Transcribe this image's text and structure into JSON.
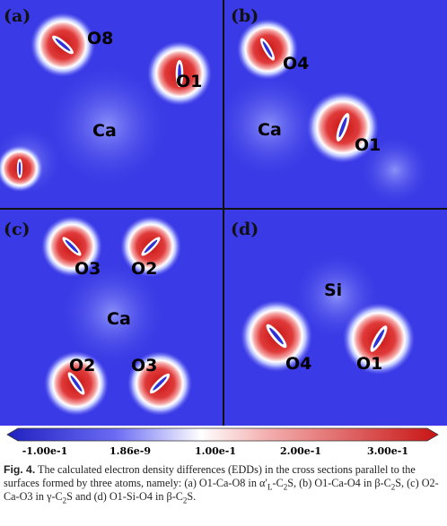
{
  "panels": [
    {
      "letter": "(a)",
      "atoms": [
        "O8",
        "O1",
        "Ca"
      ]
    },
    {
      "letter": "(b)",
      "atoms": [
        "O4",
        "Ca",
        "O1"
      ]
    },
    {
      "letter": "(c)",
      "atoms": [
        "O3",
        "O2",
        "Ca",
        "O2",
        "O3"
      ]
    },
    {
      "letter": "(d)",
      "atoms": [
        "Si",
        "O4",
        "O1"
      ]
    }
  ],
  "colorbar": {
    "ticks": [
      "-1.00e-1",
      "1.86e-9",
      "1.00e-1",
      "2.00e-1",
      "3.00e-1"
    ]
  },
  "caption": {
    "label": "Fig. 4.",
    "parts": [
      {
        "text": " The calculated electron density differences (EDDs) in the cross sections parallel to the surfaces formed by three atoms, namely: (a) O1-Ca-O8 in α′"
      },
      {
        "text": "L",
        "sub": true
      },
      {
        "text": "-C"
      },
      {
        "text": "2",
        "sub": true
      },
      {
        "text": "S, (b) O1-Ca-O4 in β-C"
      },
      {
        "text": "2",
        "sub": true
      },
      {
        "text": "S, (c) O2-Ca-O3 in γ-C"
      },
      {
        "text": "2",
        "sub": true
      },
      {
        "text": "S and (d) O1-Si-O4 in β-C"
      },
      {
        "text": "2",
        "sub": true
      },
      {
        "text": "S."
      }
    ]
  }
}
